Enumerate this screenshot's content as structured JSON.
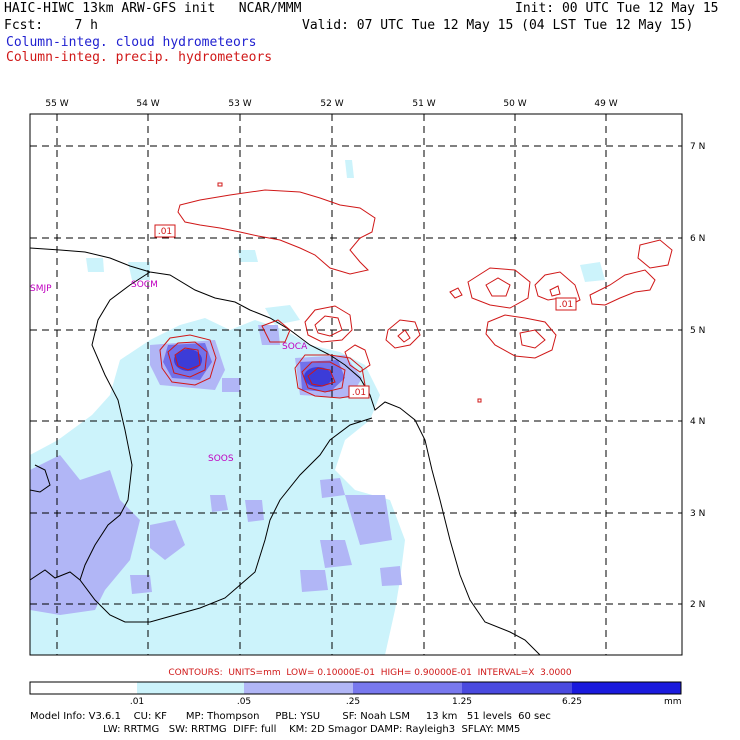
{
  "header": {
    "line1_left": "HAIC-HIWC 13km ARW-GFS init   NCAR/MMM",
    "line1_right": "Init: 00 UTC Tue 12 May 15",
    "line2_left": "Fcst:    7 h",
    "line2_right": "Valid: 07 UTC Tue 12 May 15 (04 LST Tue 12 May 15)",
    "line3": "Column-integ. cloud hydrometeors",
    "line4": "Column-integ. precip. hydrometeors"
  },
  "map": {
    "lon_labels": [
      "55 W",
      "54 W",
      "53 W",
      "52 W",
      "51 W",
      "50 W",
      "49 W"
    ],
    "lat_labels": [
      "7 N",
      "6 N",
      "5 N",
      "4 N",
      "3 N",
      "2 N"
    ],
    "stations": [
      "SMJP",
      "SOCM",
      "SOCA",
      "SOOS"
    ],
    "contour_labels": [
      ".01",
      ".01",
      ".01"
    ],
    "colors": {
      "cloud_fill_1": "#ccf3fb",
      "cloud_fill_2": "#b1b6f6",
      "cloud_fill_3": "#7272ea",
      "cloud_fill_4": "#3c3cd8",
      "precip_contour": "#d01818",
      "coastline": "#000000"
    }
  },
  "contours_info": "CONTOURS:  UNITS=mm  LOW= 0.10000E-01  HIGH= 0.90000E-01  INTERVAL=X  3.0000",
  "colorbar": {
    "ticks": [
      ".01",
      ".05",
      ".25",
      "1.25",
      "6.25"
    ],
    "unit": "mm",
    "colors": [
      "#ffffff",
      "#ccf3fb",
      "#b1b6f6",
      "#7878ee",
      "#4a4adf",
      "#1a1add"
    ]
  },
  "model_info": {
    "line1": "Model Info: V3.6.1    CU: KF      MP: Thompson     PBL: YSU       SF: Noah LSM     13 km   51 levels  60 sec",
    "line2": "                       LW: RRTMG   SW: RRTMG  DIFF: full    KM: 2D Smagor DAMP: Rayleigh3  SFLAY: MM5"
  }
}
